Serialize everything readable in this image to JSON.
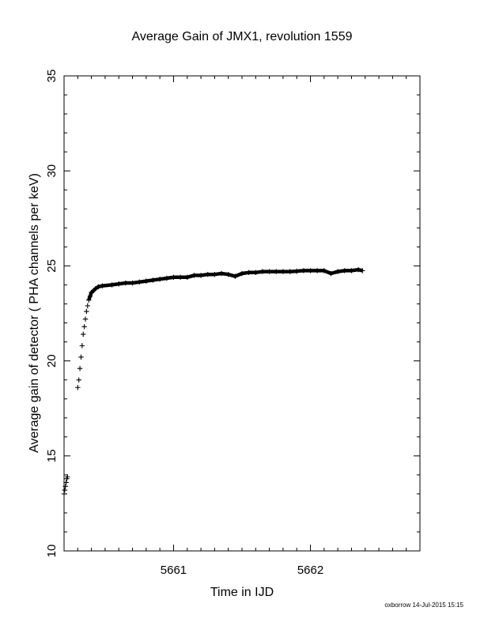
{
  "chart_data": {
    "type": "scatter",
    "title": "Average Gain of JMX1, revolution 1559",
    "xlabel": "Time in IJD",
    "ylabel": "Average gain of detector ( PHA channels per keV)",
    "xlim": [
      5660.2,
      5662.8
    ],
    "ylim": [
      10,
      35
    ],
    "x_ticks": [
      5661,
      5662
    ],
    "y_ticks": [
      10,
      15,
      20,
      25,
      30,
      35
    ],
    "marker": "+",
    "grid": false,
    "legend": "none",
    "series": [
      {
        "x": [
          5660.2,
          5660.205,
          5660.21,
          5660.215,
          5660.22,
          5660.225,
          5660.3,
          5660.308,
          5660.316,
          5660.324,
          5660.332,
          5660.34,
          5660.348,
          5660.356,
          5660.364,
          5660.372,
          5660.38,
          5660.39,
          5660.4,
          5660.415,
          5660.43,
          5660.45,
          5660.48,
          5660.55,
          5660.6,
          5660.65,
          5660.7,
          5660.75,
          5660.8,
          5660.85,
          5660.9,
          5660.95,
          5661.0,
          5661.05,
          5661.1,
          5661.15,
          5661.2,
          5661.25,
          5661.3,
          5661.35,
          5661.4,
          5661.45,
          5661.5,
          5661.55,
          5661.6,
          5661.65,
          5661.7,
          5661.75,
          5661.8,
          5661.85,
          5661.9,
          5661.95,
          5662.0,
          5662.05,
          5662.1,
          5662.15,
          5662.2,
          5662.25,
          5662.3,
          5662.35,
          5662.38
        ],
        "y": [
          13.0,
          13.2,
          13.4,
          13.6,
          13.8,
          13.9,
          18.6,
          19.0,
          19.6,
          20.2,
          20.8,
          21.4,
          21.8,
          22.2,
          22.6,
          22.9,
          23.2,
          23.4,
          23.6,
          23.7,
          23.8,
          23.9,
          23.95,
          24.0,
          24.05,
          24.1,
          24.1,
          24.15,
          24.2,
          24.25,
          24.3,
          24.35,
          24.4,
          24.4,
          24.4,
          24.5,
          24.5,
          24.55,
          24.55,
          24.6,
          24.55,
          24.45,
          24.6,
          24.65,
          24.65,
          24.7,
          24.7,
          24.7,
          24.7,
          24.7,
          24.72,
          24.75,
          24.75,
          24.75,
          24.75,
          24.6,
          24.7,
          24.75,
          24.75,
          24.8,
          24.75
        ]
      }
    ]
  },
  "credit": "oxborrow 14-Jul-2015 15:15"
}
